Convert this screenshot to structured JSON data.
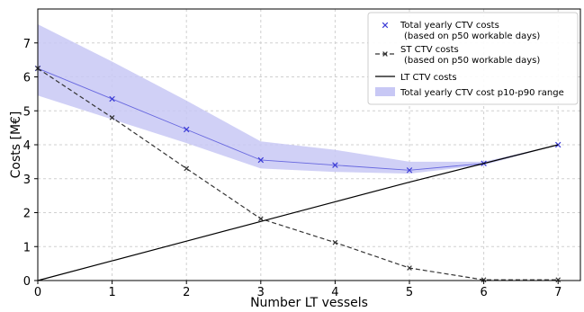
{
  "chart_data": {
    "type": "line",
    "xlabel": "Number LT vessels",
    "ylabel": "Costs [M€]",
    "xlim": [
      0,
      7.3
    ],
    "ylim": [
      0,
      8
    ],
    "xticks": [
      "0",
      "1",
      "2",
      "3",
      "4",
      "5",
      "6",
      "7"
    ],
    "yticks": [
      "0",
      "1",
      "2",
      "3",
      "4",
      "5",
      "6",
      "7"
    ],
    "grid": true,
    "legend_position": "top-right",
    "x": [
      0,
      1,
      2,
      3,
      4,
      5,
      6,
      7
    ],
    "series": [
      {
        "name": "Total yearly CTV costs",
        "name_line2": "(based on p50 workable days)",
        "style": "line-with-x-markers",
        "color": "#3b3bd6",
        "values": [
          6.25,
          5.35,
          4.45,
          3.55,
          3.4,
          3.25,
          3.45,
          4.0
        ]
      },
      {
        "name": "ST CTV costs",
        "name_line2": "(based on p50 workable days)",
        "style": "dashed-with-x-markers",
        "color": "#333333",
        "values": [
          6.25,
          4.8,
          3.3,
          1.82,
          1.12,
          0.37,
          0.02,
          0.02
        ]
      },
      {
        "name": "LT CTV costs",
        "style": "solid",
        "color": "#000000",
        "values": [
          0.0,
          0.58,
          1.16,
          1.74,
          2.32,
          2.9,
          3.45,
          4.0
        ]
      }
    ],
    "band": {
      "name": "Total yearly CTV cost p10-p90 range",
      "color": "#c8c8f5",
      "lower": [
        5.45,
        4.75,
        4.05,
        3.3,
        3.2,
        3.15,
        3.4,
        4.0
      ],
      "upper": [
        7.55,
        6.45,
        5.3,
        4.1,
        3.85,
        3.5,
        3.5,
        4.0
      ]
    }
  }
}
